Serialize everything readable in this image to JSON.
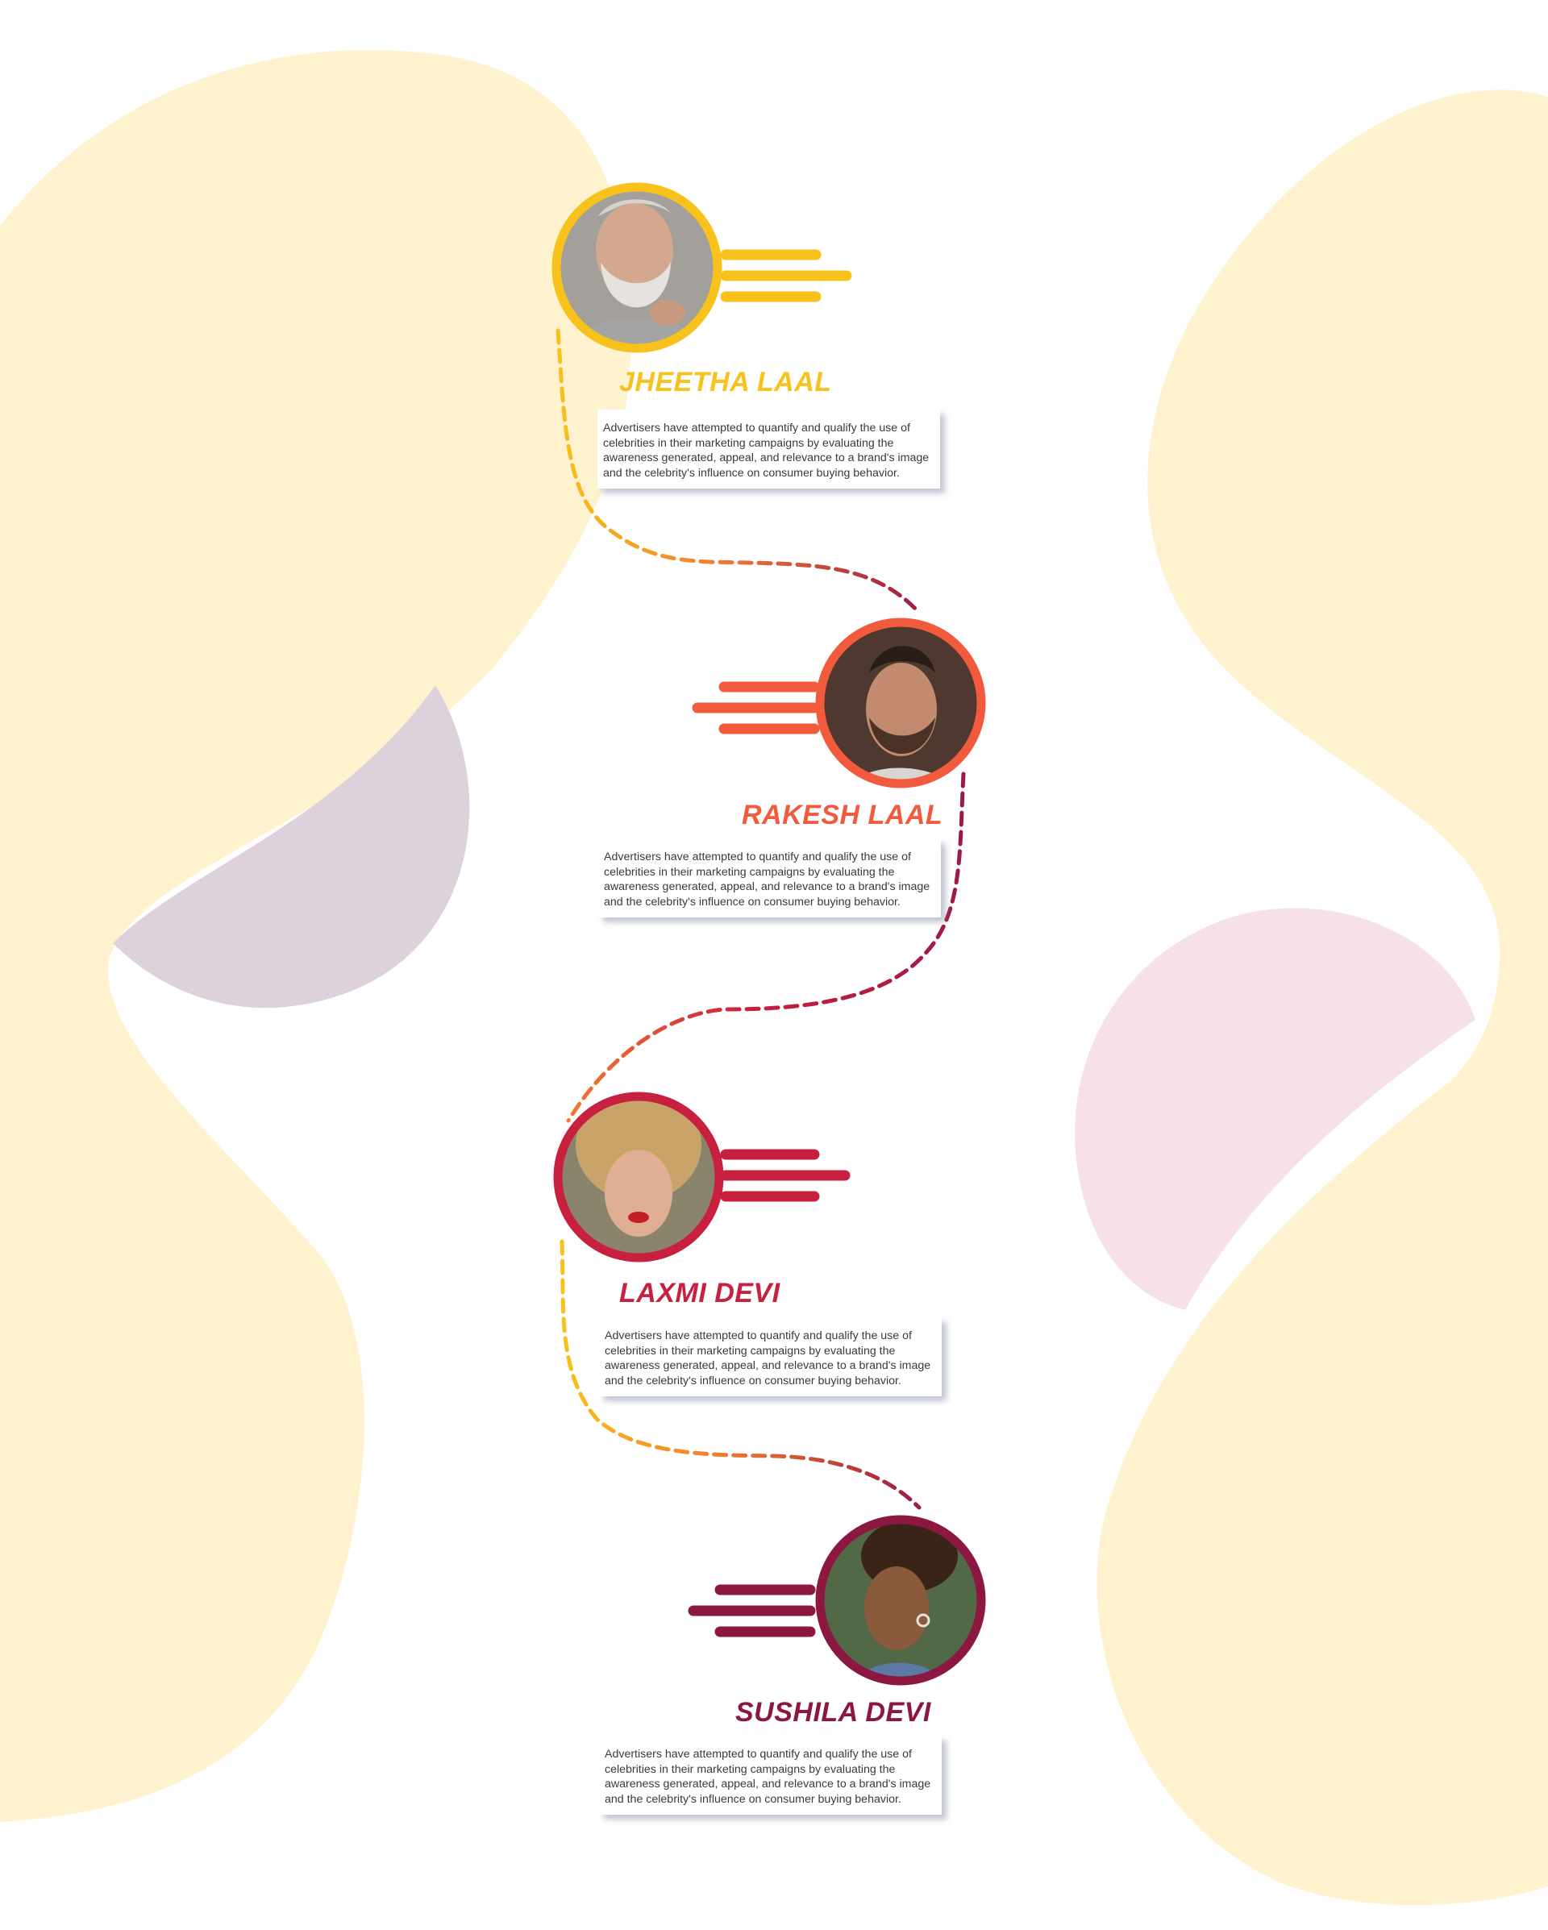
{
  "colors": {
    "background": "#ffffff",
    "blob_yellow": "#fff2cf",
    "blob_lilac": "#ddd2dc",
    "blob_pink": "#f6e2e6",
    "yellow": "#f7c21b",
    "orange": "#f15a3c",
    "crimson": "#c8203f",
    "maroon": "#8c1740",
    "card_text": "#3a3a3a"
  },
  "people": [
    {
      "name": "JHEETHA LAAL",
      "color": "#f7c21b",
      "photo_icon": "older-bearded-man-photo",
      "description": "Advertisers have attempted to quantify and qualify the use of celebrities in their marketing campaigns by evaluating the awareness generated, appeal, and relevance to a brand's image and the celebrity's influence on consumer buying behavior."
    },
    {
      "name": "RAKESH LAAL",
      "color": "#f15a3c",
      "photo_icon": "young-bearded-man-photo",
      "description": "Advertisers have attempted to quantify and qualify the use of celebrities in their marketing campaigns by evaluating the awareness generated, appeal, and relevance to a brand's image and the celebrity's influence on consumer buying behavior."
    },
    {
      "name": "LAXMI DEVI",
      "color": "#c8203f",
      "photo_icon": "curly-haired-woman-photo",
      "description": "Advertisers have attempted to quantify and qualify the use of celebrities in their marketing campaigns by evaluating the awareness generated, appeal, and relevance to a brand's image and the celebrity's influence on consumer buying behavior."
    },
    {
      "name": "SUSHILA DEVI",
      "color": "#8c1740",
      "photo_icon": "smiling-woman-photo",
      "description": "Advertisers have attempted to quantify and qualify the use of celebrities in their marketing campaigns by evaluating the awareness generated, appeal, and relevance to a brand's image and the celebrity's influence on consumer buying behavior."
    }
  ]
}
